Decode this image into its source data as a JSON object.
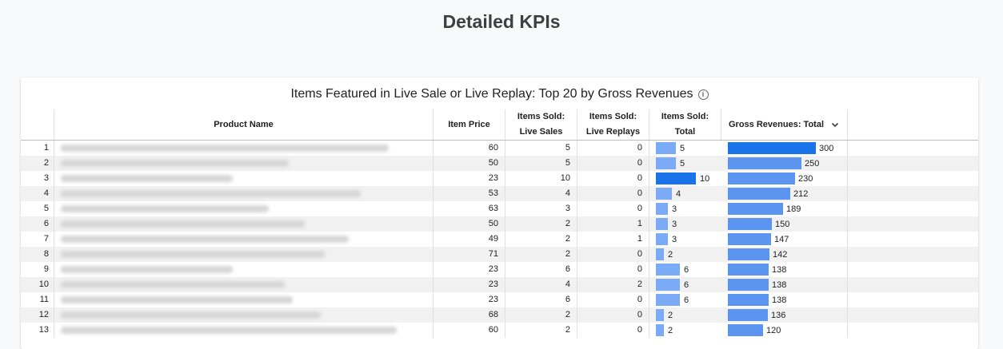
{
  "page_title": "Detailed KPIs",
  "table_title": "Items Featured in Live Sale or Live Replay: Top 20 by Gross Revenues",
  "headers": {
    "product_name": "Product Name",
    "item_price": "Item Price",
    "live_sales_1": "Items Sold:",
    "live_sales_2": "Live Sales",
    "live_replays_1": "Items Sold:",
    "live_replays_2": "Live Replays",
    "total_1": "Items Sold:",
    "total_2": "Total",
    "gross": "Gross Revenues: Total"
  },
  "colors": {
    "bar_total": "#7baaf7",
    "bar_total_max": "#1a73e8",
    "bar_gross": "#5b95f0",
    "bar_gross_max": "#1a73e8"
  },
  "rows": [
    {
      "rank": "1",
      "price": "60",
      "live_sales": "5",
      "live_replays": "0",
      "total": "5",
      "gross": "300"
    },
    {
      "rank": "2",
      "price": "50",
      "live_sales": "5",
      "live_replays": "0",
      "total": "5",
      "gross": "250"
    },
    {
      "rank": "3",
      "price": "23",
      "live_sales": "10",
      "live_replays": "0",
      "total": "10",
      "gross": "230"
    },
    {
      "rank": "4",
      "price": "53",
      "live_sales": "4",
      "live_replays": "0",
      "total": "4",
      "gross": "212"
    },
    {
      "rank": "5",
      "price": "63",
      "live_sales": "3",
      "live_replays": "0",
      "total": "3",
      "gross": "189"
    },
    {
      "rank": "6",
      "price": "50",
      "live_sales": "2",
      "live_replays": "1",
      "total": "3",
      "gross": "150"
    },
    {
      "rank": "7",
      "price": "49",
      "live_sales": "2",
      "live_replays": "1",
      "total": "3",
      "gross": "147"
    },
    {
      "rank": "8",
      "price": "71",
      "live_sales": "2",
      "live_replays": "0",
      "total": "2",
      "gross": "142"
    },
    {
      "rank": "9",
      "price": "23",
      "live_sales": "6",
      "live_replays": "0",
      "total": "6",
      "gross": "138"
    },
    {
      "rank": "10",
      "price": "23",
      "live_sales": "4",
      "live_replays": "2",
      "total": "6",
      "gross": "138"
    },
    {
      "rank": "11",
      "price": "23",
      "live_sales": "6",
      "live_replays": "0",
      "total": "6",
      "gross": "138"
    },
    {
      "rank": "12",
      "price": "68",
      "live_sales": "2",
      "live_replays": "0",
      "total": "2",
      "gross": "136"
    },
    {
      "rank": "13",
      "price": "60",
      "live_sales": "2",
      "live_replays": "0",
      "total": "2",
      "gross": "120"
    }
  ]
}
